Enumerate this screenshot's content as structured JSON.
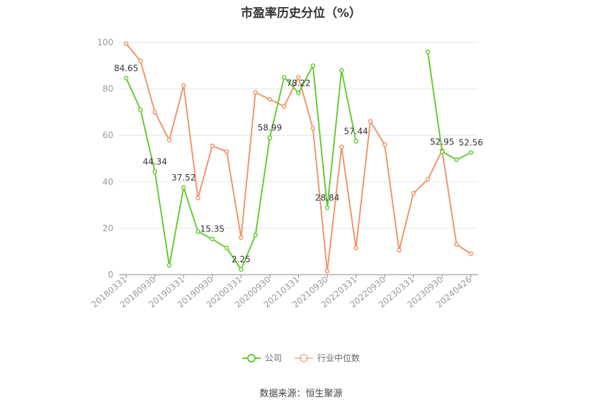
{
  "chart_data": {
    "type": "line",
    "title": "市盈率历史分位（%）",
    "source": "数据来源：恒生聚源",
    "ylim": [
      0,
      100
    ],
    "yticks": [
      0,
      20,
      40,
      60,
      80,
      100
    ],
    "grid": true,
    "legend_position": "bottom",
    "x": [
      "20180331",
      "20180630",
      "20180930",
      "20181231",
      "20190331",
      "20190630",
      "20190930",
      "20191231",
      "20200331",
      "20200630",
      "20200930",
      "20201231",
      "20210331",
      "20210630",
      "20210930",
      "20211231",
      "20220331",
      "20220630",
      "20220930",
      "20221231",
      "20230331",
      "20230630",
      "20230930",
      "20231231",
      "20240426"
    ],
    "xtick_labels": [
      "20180331",
      "20180930",
      "20190331",
      "20190930",
      "20200331",
      "20200930",
      "20210331",
      "20210930",
      "20220331",
      "20220930",
      "20230331",
      "20230930",
      "20240426"
    ],
    "series": [
      {
        "name": "公司",
        "color": "#66cc33",
        "values": [
          84.65,
          71,
          44.34,
          4,
          37.52,
          18.5,
          15.35,
          11.5,
          2.25,
          17,
          58.99,
          85,
          78.22,
          90,
          28.84,
          88,
          57.44,
          null,
          null,
          null,
          null,
          96,
          52.95,
          49.5,
          52.56
        ]
      },
      {
        "name": "行业中位数",
        "color": "#f0956a",
        "values": [
          99.5,
          92,
          70,
          58,
          81.5,
          33,
          55.5,
          53,
          16,
          78.5,
          75.5,
          72.5,
          85,
          63,
          1.5,
          55,
          11.5,
          66,
          56,
          10.5,
          35,
          41,
          53.5,
          13,
          9
        ]
      }
    ],
    "annotations": [
      {
        "series": 0,
        "index": 0,
        "text": "84.65"
      },
      {
        "series": 0,
        "index": 2,
        "text": "44.34"
      },
      {
        "series": 0,
        "index": 4,
        "text": "37.52"
      },
      {
        "series": 0,
        "index": 6,
        "text": "15.35"
      },
      {
        "series": 0,
        "index": 8,
        "text": "2.25"
      },
      {
        "series": 0,
        "index": 10,
        "text": "58.99"
      },
      {
        "series": 0,
        "index": 12,
        "text": "78.22"
      },
      {
        "series": 0,
        "index": 14,
        "text": "28.84"
      },
      {
        "series": 0,
        "index": 16,
        "text": "57.44"
      },
      {
        "series": 0,
        "index": 22,
        "text": "52.95"
      },
      {
        "series": 0,
        "index": 24,
        "text": "52.56"
      }
    ]
  }
}
